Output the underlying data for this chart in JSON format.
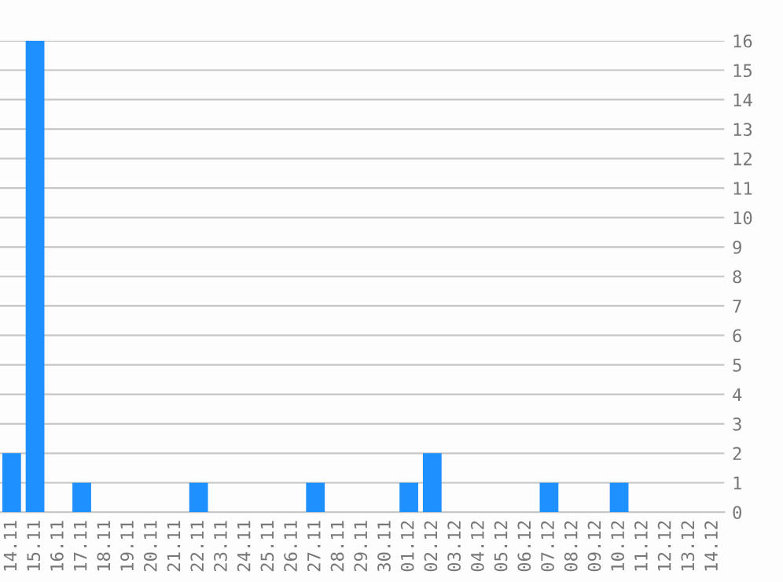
{
  "chart_data": {
    "type": "bar",
    "categories": [
      "14.11",
      "15.11",
      "16.11",
      "17.11",
      "18.11",
      "19.11",
      "20.11",
      "21.11",
      "22.11",
      "23.11",
      "24.11",
      "25.11",
      "26.11",
      "27.11",
      "28.11",
      "29.11",
      "30.11",
      "01.12",
      "02.12",
      "03.12",
      "04.12",
      "05.12",
      "06.12",
      "07.12",
      "08.12",
      "09.12",
      "10.12",
      "11.12",
      "12.12",
      "13.12",
      "14.12"
    ],
    "values": [
      2,
      16,
      0,
      1,
      0,
      0,
      0,
      0,
      1,
      0,
      0,
      0,
      0,
      1,
      0,
      0,
      0,
      1,
      2,
      0,
      0,
      0,
      0,
      1,
      0,
      0,
      1,
      0,
      0,
      0,
      0
    ],
    "color": "#1e90ff",
    "ylim": [
      0,
      16
    ],
    "yticks": [
      0,
      1,
      2,
      3,
      4,
      5,
      6,
      7,
      8,
      9,
      10,
      11,
      12,
      13,
      14,
      15,
      16
    ],
    "grid": "y",
    "legend": false
  }
}
